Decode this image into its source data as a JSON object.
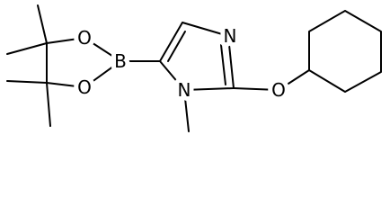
{
  "atoms": [
    {
      "label": "O"
    },
    {
      "label": "O"
    },
    {
      "label": "B"
    },
    {
      "label": "N"
    },
    {
      "label": "N"
    },
    {
      "label": "O"
    }
  ]
}
